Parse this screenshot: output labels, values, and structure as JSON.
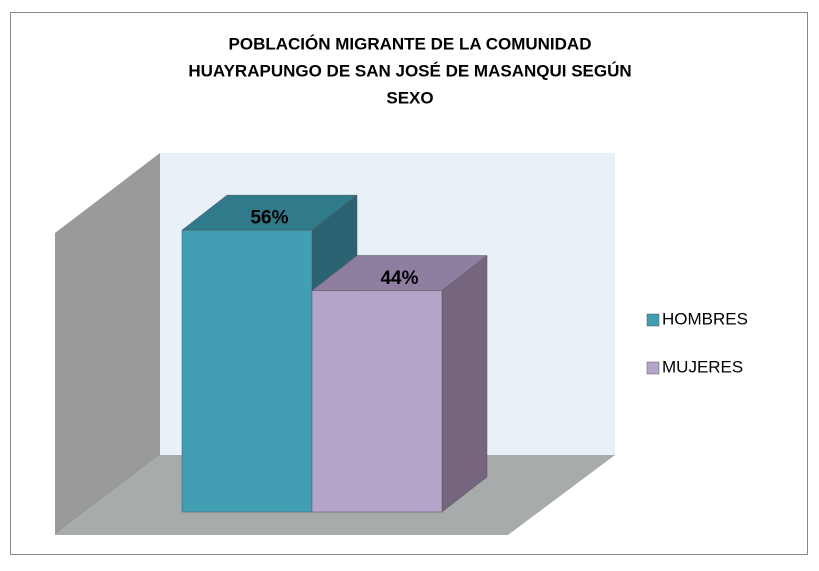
{
  "chart_data": {
    "type": "bar3d",
    "title": [
      "POBLACIÓN MIGRANTE DE LA COMUNIDAD",
      "HUAYRAPUNGO DE SAN JOSÉ DE MASANQUI SEGÚN",
      "SEXO"
    ],
    "ylim": [
      0,
      60
    ],
    "series": [
      {
        "name": "HOMBRES",
        "color": "#419eb3",
        "top": "#2f7b8c",
        "side": "#2b6373",
        "values": [
          56
        ],
        "value_labels": [
          "56%"
        ]
      },
      {
        "name": "MUJERES",
        "color": "#b4a4c9",
        "top": "#8e7ea0",
        "side": "#76657f",
        "values": [
          44
        ],
        "value_labels": [
          "44%"
        ]
      }
    ]
  }
}
